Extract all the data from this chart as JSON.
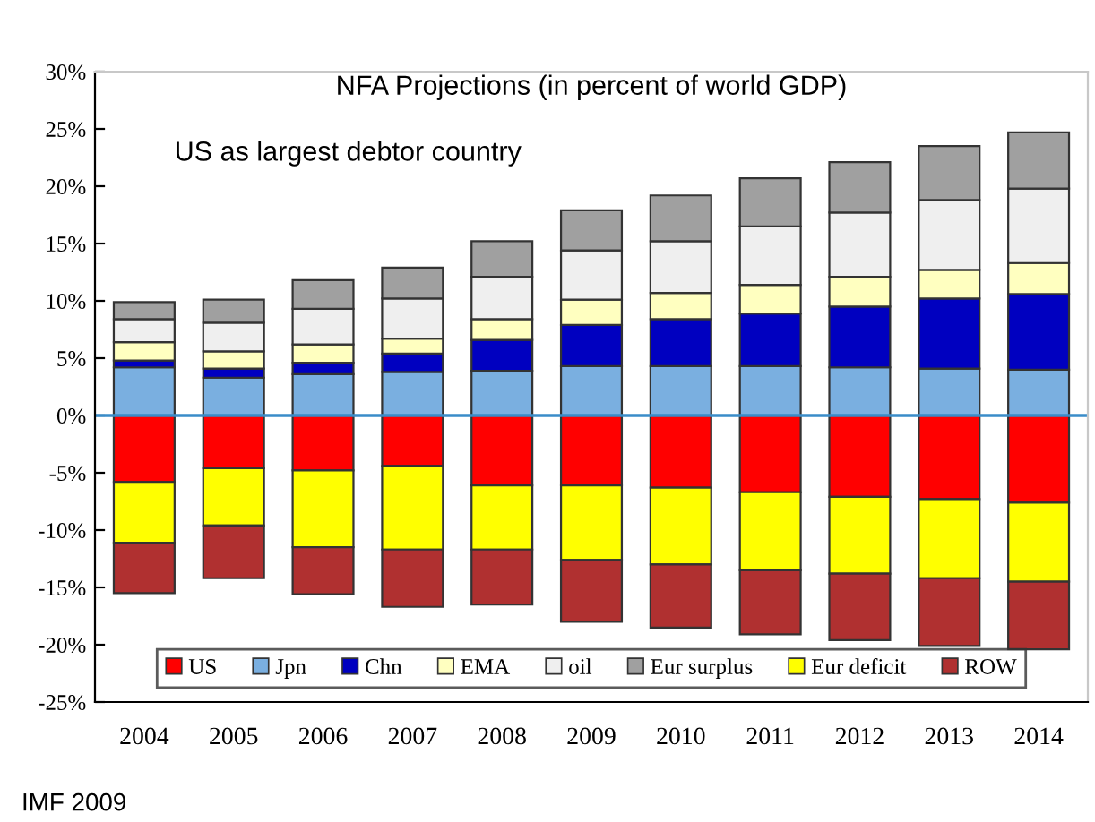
{
  "chart_data": {
    "type": "bar",
    "stacked": true,
    "title": "NFA Projections (in percent of world GDP)",
    "subtitle": "US as largest debtor country",
    "annotations": [
      "IMF 2009"
    ],
    "categories": [
      "2004",
      "2005",
      "2006",
      "2007",
      "2008",
      "2009",
      "2010",
      "2011",
      "2012",
      "2013",
      "2014"
    ],
    "series": [
      {
        "name": "US",
        "color": "#ff0000",
        "values": [
          -5.8,
          -4.6,
          -4.8,
          -4.4,
          -6.1,
          -6.1,
          -6.3,
          -6.7,
          -7.1,
          -7.3,
          -7.6
        ]
      },
      {
        "name": "Jpn",
        "color": "#7aafe0",
        "values": [
          4.2,
          3.3,
          3.6,
          3.8,
          3.9,
          4.3,
          4.3,
          4.3,
          4.2,
          4.1,
          4.0
        ]
      },
      {
        "name": "Chn",
        "color": "#0000c0",
        "values": [
          0.6,
          0.8,
          1.0,
          1.6,
          2.7,
          3.6,
          4.1,
          4.6,
          5.3,
          6.1,
          6.6
        ]
      },
      {
        "name": "EMA",
        "color": "#ffffc0",
        "values": [
          1.6,
          1.5,
          1.6,
          1.3,
          1.8,
          2.2,
          2.3,
          2.5,
          2.6,
          2.5,
          2.7
        ]
      },
      {
        "name": "oil",
        "color": "#efefef",
        "values": [
          2.0,
          2.5,
          3.1,
          3.5,
          3.7,
          4.3,
          4.5,
          5.1,
          5.6,
          6.1,
          6.5
        ]
      },
      {
        "name": "Eur surplus",
        "color": "#a0a0a0",
        "values": [
          1.5,
          2.0,
          2.5,
          2.7,
          3.1,
          3.5,
          4.0,
          4.2,
          4.4,
          4.7,
          4.9
        ]
      },
      {
        "name": "Eur deficit",
        "color": "#ffff00",
        "values": [
          -5.3,
          -5.0,
          -6.7,
          -7.3,
          -5.6,
          -6.5,
          -6.7,
          -6.8,
          -6.7,
          -6.9,
          -6.9
        ]
      },
      {
        "name": "ROW",
        "color": "#b03030",
        "values": [
          -4.4,
          -4.6,
          -4.1,
          -5.0,
          -4.8,
          -5.4,
          -5.5,
          -5.6,
          -5.8,
          -5.9,
          -5.9
        ]
      }
    ],
    "ylim": [
      -25,
      30
    ],
    "yticks": [
      {
        "value": -25,
        "label": "-25%"
      },
      {
        "value": -20,
        "label": "-20%"
      },
      {
        "value": -15,
        "label": "-15%"
      },
      {
        "value": -10,
        "label": "-10%"
      },
      {
        "value": -5,
        "label": "-5%"
      },
      {
        "value": 0,
        "label": "0%"
      },
      {
        "value": 5,
        "label": "5%"
      },
      {
        "value": 10,
        "label": "10%"
      },
      {
        "value": 15,
        "label": "15%"
      },
      {
        "value": 20,
        "label": "20%"
      },
      {
        "value": 25,
        "label": "25%"
      },
      {
        "value": 30,
        "label": "30%"
      }
    ],
    "ref_lines": [
      {
        "axis": "y",
        "value": 0,
        "color": "#3a8cc9"
      }
    ],
    "grid": false,
    "legend": "bottom"
  }
}
